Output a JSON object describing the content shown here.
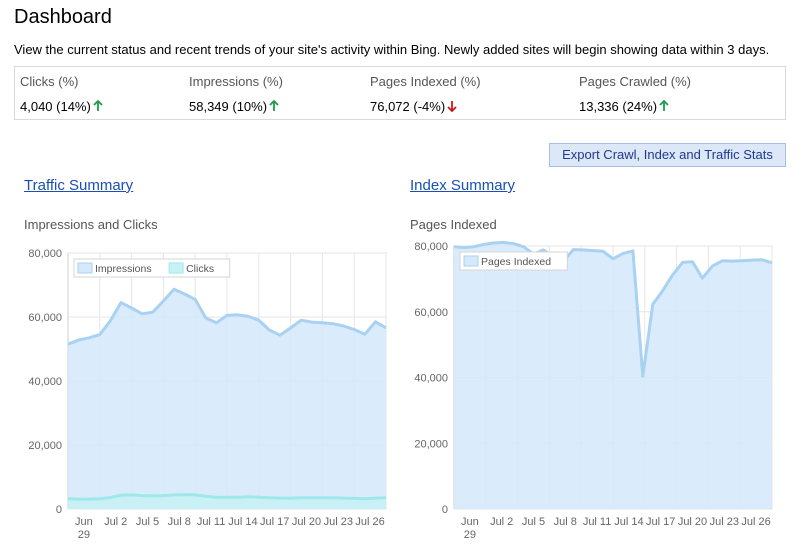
{
  "header": {
    "title": "Dashboard",
    "description": "View the current status and recent trends of your site's activity within Bing. Newly added sites will begin showing data within 3 days."
  },
  "stats": [
    {
      "label": "Clicks (%)",
      "value": "4,040 (14%)",
      "trend": "up",
      "trend_color": "#1a9e4a"
    },
    {
      "label": "Impressions (%)",
      "value": "58,349 (10%)",
      "trend": "up",
      "trend_color": "#1a9e4a"
    },
    {
      "label": "Pages Indexed (%)",
      "value": "76,072 (-4%)",
      "trend": "down",
      "trend_color": "#d0141a"
    },
    {
      "label": "Pages Crawled (%)",
      "value": "13,336 (24%)",
      "trend": "up",
      "trend_color": "#1a9e4a"
    }
  ],
  "export_button": {
    "label": "Export Crawl, Index and Traffic Stats"
  },
  "traffic": {
    "link": "Traffic Summary",
    "subtitle": "Impressions and Clicks"
  },
  "index": {
    "link": "Index Summary",
    "subtitle": "Pages Indexed"
  },
  "colors": {
    "area_fill": "#d4e9fb",
    "line_primary": "#a9d1f2",
    "line_clicks": "#9ee8ec",
    "clicks_fill": "#c7f2f4",
    "grid": "#e6e6e6"
  },
  "chart_data": [
    {
      "type": "area",
      "title": "Impressions and Clicks",
      "xticks": [
        "Jun\n29",
        "Jul 2",
        "Jul 5",
        "Jul 8",
        "Jul 11",
        "Jul 14",
        "Jul 17",
        "Jul 20",
        "Jul 23",
        "Jul 26"
      ],
      "ylim": [
        0,
        80000
      ],
      "yticks": [
        0,
        20000,
        40000,
        60000,
        80000
      ],
      "ytick_labels": [
        "0",
        "20,000",
        "40,000",
        "60,000",
        "80,000"
      ],
      "legend": "top-left",
      "series": [
        {
          "name": "Impressions",
          "values": [
            51500,
            52800,
            53500,
            54500,
            58800,
            64500,
            62800,
            61000,
            61500,
            65000,
            68700,
            67200,
            65500,
            59700,
            58200,
            60500,
            60700,
            60200,
            59000,
            55900,
            54300,
            56600,
            59000,
            58400,
            58200,
            57900,
            57200,
            56100,
            54600,
            58500,
            56600
          ]
        },
        {
          "name": "Clicks",
          "values": [
            3200,
            3100,
            3100,
            3200,
            3600,
            4300,
            4400,
            4200,
            4100,
            4200,
            4400,
            4500,
            4400,
            4000,
            3700,
            3700,
            3700,
            3800,
            3700,
            3500,
            3400,
            3400,
            3500,
            3500,
            3500,
            3500,
            3400,
            3300,
            3200,
            3400,
            3500
          ]
        }
      ]
    },
    {
      "type": "area",
      "title": "Pages Indexed",
      "xticks": [
        "Jun\n29",
        "Jul 2",
        "Jul 5",
        "Jul 8",
        "Jul 11",
        "Jul 14",
        "Jul 17",
        "Jul 20",
        "Jul 23",
        "Jul 26"
      ],
      "ylim": [
        0,
        80000
      ],
      "yticks": [
        0,
        20000,
        40000,
        60000,
        80000
      ],
      "ytick_labels": [
        "0",
        "20,000",
        "40,000",
        "60,000",
        "80,000"
      ],
      "legend": "top-left",
      "series": [
        {
          "name": "Pages Indexed",
          "values": [
            79800,
            79500,
            79800,
            80500,
            80900,
            81100,
            80700,
            79800,
            77500,
            78800,
            76600,
            75300,
            78900,
            78800,
            78600,
            78400,
            76100,
            77700,
            78500,
            40400,
            62300,
            66400,
            71200,
            75000,
            75200,
            70200,
            73900,
            75500,
            75400,
            75500,
            75700,
            75800,
            74900
          ]
        }
      ]
    }
  ]
}
